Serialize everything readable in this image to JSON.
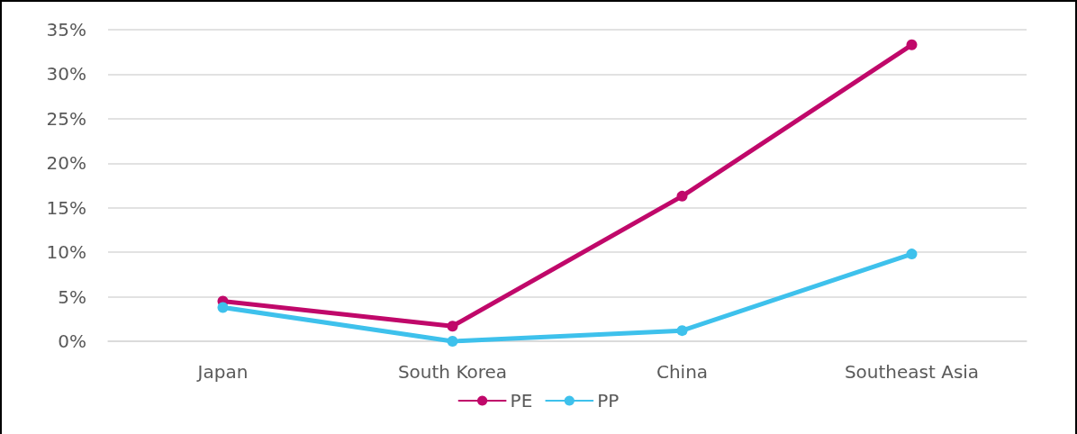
{
  "chart_data": {
    "type": "line",
    "categories": [
      "Japan",
      "South Korea",
      "China",
      "Southeast Asia"
    ],
    "series": [
      {
        "name": "PE",
        "color": "#c0086a",
        "values": [
          4.5,
          1.7,
          16.3,
          33.3
        ]
      },
      {
        "name": "PP",
        "color": "#3ec1ec",
        "values": [
          3.8,
          0,
          1.2,
          9.8
        ]
      }
    ],
    "ylim": [
      0,
      35
    ],
    "yticks": [
      {
        "value": 0,
        "label": "0%"
      },
      {
        "value": 5,
        "label": "5%"
      },
      {
        "value": 10,
        "label": "10%"
      },
      {
        "value": 15,
        "label": "15%"
      },
      {
        "value": 20,
        "label": "20%"
      },
      {
        "value": 25,
        "label": "25%"
      },
      {
        "value": 30,
        "label": "30%"
      },
      {
        "value": 35,
        "label": "35%"
      }
    ],
    "grid": "y",
    "legend": "bottom",
    "marker": "circle",
    "line_style": "solid"
  }
}
